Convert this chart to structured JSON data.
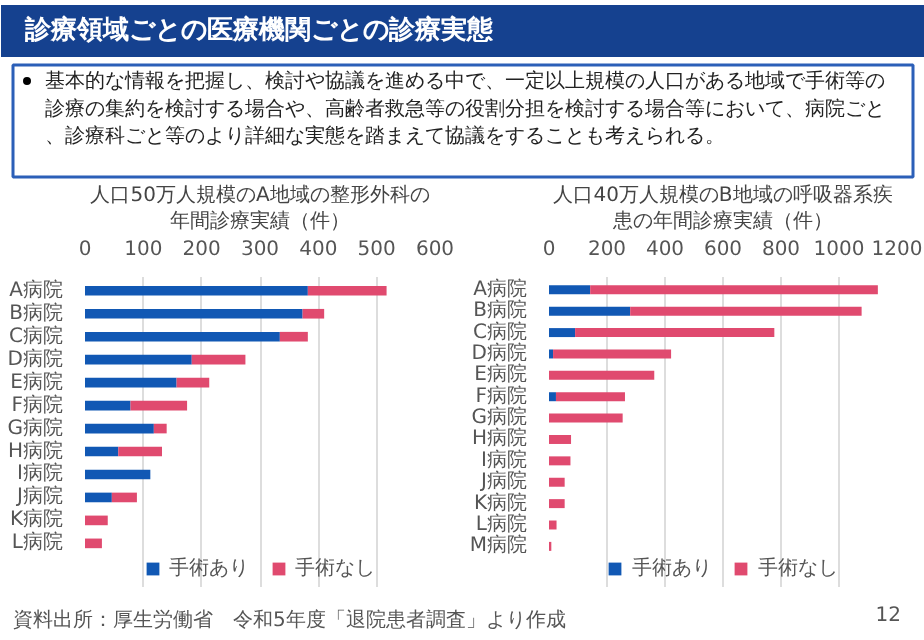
{
  "chart_data": [
    {
      "type": "other",
      "title": "診療領域ごとの医療機関ごとの診療実態",
      "annotations": [
        "基本的な情報を把握し、検討や協議を進める中で、一定以上規模の人口がある地域で手術等の診療の集約を検討する場合や、高齢者救急等の役割分担を検討する場合等において、病院ごと、診療科ごと等のより詳細な実態を踏まえて協議をすることも考えられる。",
        "資料出所：厚生労働省　令和5年度「退院患者調査」より作成",
        "12"
      ]
    },
    {
      "type": "bar",
      "orientation": "horizontal",
      "stacked": true,
      "title": "人口50万人規模のA地域の整形外科の年間診療実績（件）",
      "categories": [
        "A病院",
        "B病院",
        "C病院",
        "D病院",
        "E病院",
        "F病院",
        "G病院",
        "H病院",
        "I病院",
        "J病院",
        "K病院",
        "L病院"
      ],
      "xlim": [
        0,
        600
      ],
      "xticks": [
        0,
        100,
        200,
        300,
        400,
        500,
        600
      ],
      "grid": "x",
      "legend": "bottom",
      "series": [
        {
          "name": "手術あり",
          "color": "#1158b4",
          "values": [
            382,
            373,
            334,
            183,
            157,
            78,
            118,
            57,
            112,
            46,
            0,
            0
          ]
        },
        {
          "name": "手術なし",
          "color": "#e04a6f",
          "values": [
            135,
            37,
            48,
            92,
            56,
            97,
            22,
            75,
            0,
            43,
            39,
            29
          ]
        }
      ]
    },
    {
      "type": "bar",
      "orientation": "horizontal",
      "stacked": true,
      "title": "人口40万人規模のB地域の呼吸器系疾患の年間診療実績（件）",
      "categories": [
        "A病院",
        "B病院",
        "C病院",
        "D病院",
        "E病院",
        "F病院",
        "G病院",
        "H病院",
        "I病院",
        "J病院",
        "K病院",
        "L病院",
        "M病院"
      ],
      "xlim": [
        0,
        1200
      ],
      "xticks": [
        0,
        200,
        400,
        600,
        800,
        1000,
        1200
      ],
      "grid": "x",
      "legend": "bottom",
      "series": [
        {
          "name": "手術あり",
          "color": "#1158b4",
          "values": [
            142,
            280,
            90,
            14,
            0,
            24,
            0,
            0,
            0,
            0,
            0,
            0,
            0
          ]
        },
        {
          "name": "手術なし",
          "color": "#e04a6f",
          "values": [
            992,
            798,
            687,
            407,
            363,
            238,
            254,
            76,
            74,
            54,
            54,
            26,
            8
          ]
        }
      ]
    }
  ]
}
